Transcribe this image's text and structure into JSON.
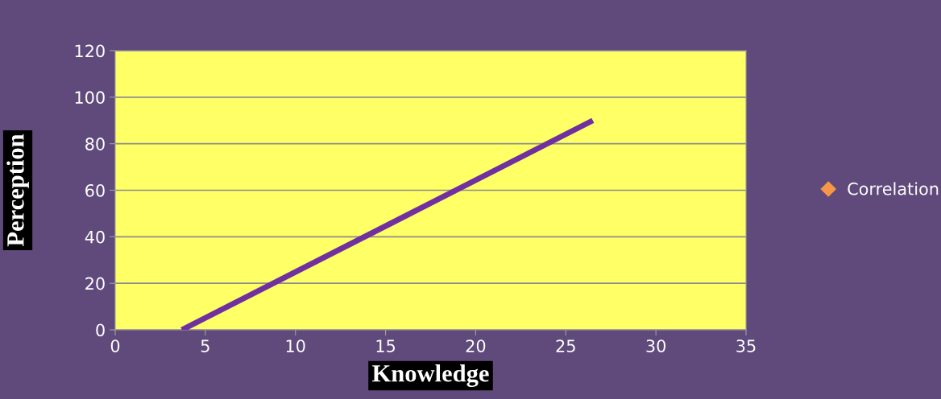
{
  "chart_data": {
    "type": "line",
    "xlabel": "Knowledge",
    "ylabel": "Perception",
    "series": [
      {
        "name": "Correlation",
        "type": "scatter",
        "color": "#f79646",
        "marker": "diamond"
      },
      {
        "color": "#7030a0",
        "x": [
          3.7,
          26.5
        ],
        "values": [
          0,
          90
        ]
      }
    ],
    "xlim": [
      0,
      35
    ],
    "xticks": [
      0,
      5,
      10,
      15,
      20,
      25,
      30,
      35
    ],
    "ylim": [
      0,
      120
    ],
    "yticks": [
      0,
      20,
      40,
      60,
      80,
      100,
      120
    ],
    "grid": "y",
    "legend": "right"
  }
}
